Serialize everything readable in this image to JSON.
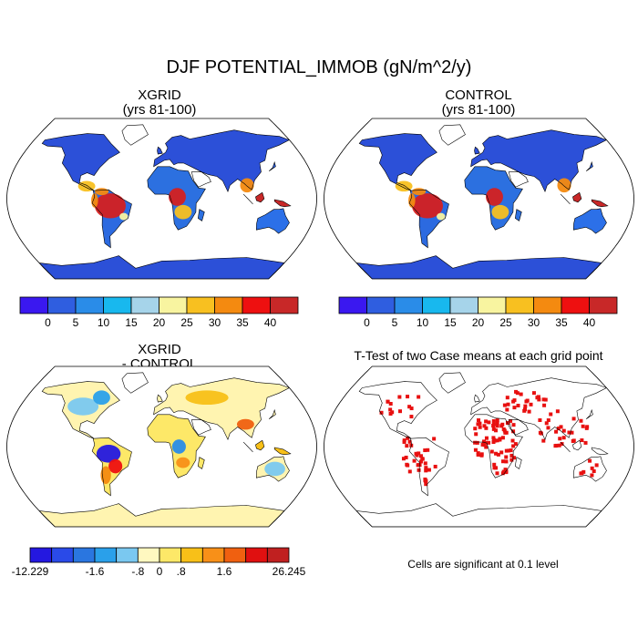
{
  "title": "DJF POTENTIAL_IMMOB (gN/m^2/y)",
  "panels": {
    "xgrid": {
      "title_line1": "XGRID",
      "title_line2": "(yrs 81-100)"
    },
    "control": {
      "title_line1": "CONTROL",
      "title_line2": "(yrs 81-100)"
    },
    "diff": {
      "title_line1": "XGRID",
      "title_line2": "- CONTROL"
    },
    "ttest": {
      "title": "T-Test of two Case means at each grid point",
      "note": "Cells are significant at 0.1 level"
    }
  },
  "colorbar_main": {
    "colors": [
      "#3a18f0",
      "#2f5ee0",
      "#2a8ce8",
      "#18b8ee",
      "#a6d4ea",
      "#f8f4a0",
      "#f8c020",
      "#f48a10",
      "#ee1010",
      "#c82828"
    ],
    "labels": [
      "0",
      "5",
      "10",
      "15",
      "20",
      "25",
      "30",
      "35",
      "40"
    ]
  },
  "colorbar_diff": {
    "colors": [
      "#2418e0",
      "#2a4ae8",
      "#2a76e0",
      "#2aa0ea",
      "#7ac8f0",
      "#fff8c0",
      "#fde868",
      "#f8c018",
      "#f89018",
      "#f06010",
      "#e01010",
      "#c02020"
    ],
    "labels": [
      "-12.229",
      "-1.6",
      "-.8",
      "0",
      ".8",
      "1.6",
      "26.245"
    ]
  },
  "colors": {
    "ocean": "#ffffff",
    "land_high": "#2c50d8",
    "tropics": "#d02020",
    "significant": "#e81010",
    "outline": "#000000"
  }
}
